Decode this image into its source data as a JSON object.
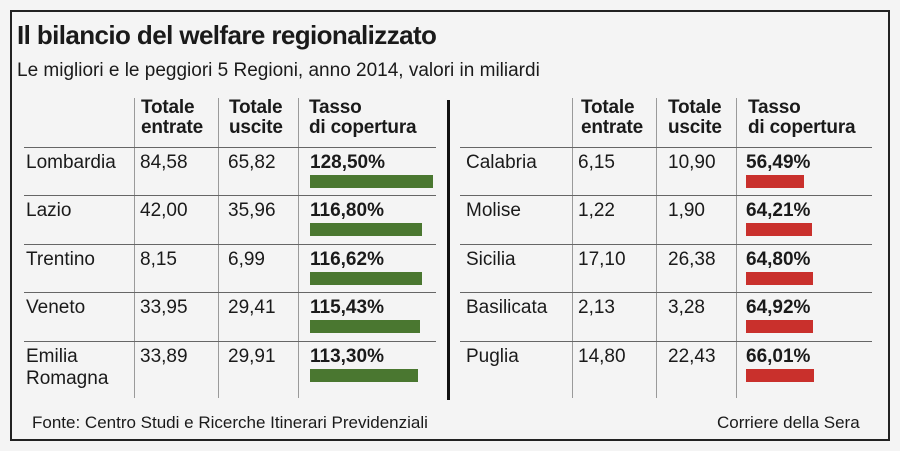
{
  "title": "Il bilancio del welfare regionalizzato",
  "subtitle": "Le migliori e le peggiori 5 Regioni, anno 2014, valori in miliardi",
  "headers": {
    "entrate": [
      "Totale",
      "entrate"
    ],
    "uscite": [
      "Totale",
      "uscite"
    ],
    "tasso": [
      "Tasso",
      "di copertura"
    ]
  },
  "colors": {
    "best": "#4a7730",
    "worst": "#c9302c"
  },
  "best": [
    {
      "region": [
        "Lombardia"
      ],
      "entrate": "84,58",
      "uscite": "65,82",
      "tasso": "128,50%",
      "value": 128.5
    },
    {
      "region": [
        "Lazio"
      ],
      "entrate": "42,00",
      "uscite": "35,96",
      "tasso": "116,80%",
      "value": 116.8
    },
    {
      "region": [
        "Trentino"
      ],
      "entrate": "8,15",
      "uscite": "6,99",
      "tasso": "116,62%",
      "value": 116.62
    },
    {
      "region": [
        "Veneto"
      ],
      "entrate": "33,95",
      "uscite": "29,41",
      "tasso": "115,43%",
      "value": 115.43
    },
    {
      "region": [
        "Emilia",
        "Romagna"
      ],
      "entrate": "33,89",
      "uscite": "29,91",
      "tasso": "113,30%",
      "value": 113.3
    }
  ],
  "worst": [
    {
      "region": [
        "Calabria"
      ],
      "entrate": "6,15",
      "uscite": "10,90",
      "tasso": "56,49%",
      "value": 56.49
    },
    {
      "region": [
        "Molise"
      ],
      "entrate": "1,22",
      "uscite": "1,90",
      "tasso": "64,21%",
      "value": 64.21
    },
    {
      "region": [
        "Sicilia"
      ],
      "entrate": "17,10",
      "uscite": "26,38",
      "tasso": "64,80%",
      "value": 64.8
    },
    {
      "region": [
        "Basilicata"
      ],
      "entrate": "2,13",
      "uscite": "3,28",
      "tasso": "64,92%",
      "value": 64.92
    },
    {
      "region": [
        "Puglia"
      ],
      "entrate": "14,80",
      "uscite": "22,43",
      "tasso": "66,01%",
      "value": 66.01
    }
  ],
  "footer": {
    "source": "Fonte: Centro Studi e Ricerche Itinerari Previdenziali",
    "credit": "Corriere della Sera"
  }
}
